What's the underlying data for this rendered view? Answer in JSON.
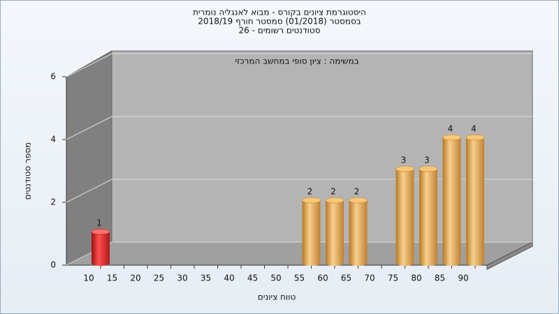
{
  "chart_data": {
    "type": "bar3d",
    "title": [
      "היסטוגרמת ציונים בקורס - מבוא לאנגליה נומרית",
      "בסמסטר (01/2018)  סמסטר חורף 2018/19",
      "סטודנטים רשומים - 26"
    ],
    "subtitle": "במשימה : ציון סופי במחשב המרכזי",
    "x_label": "טווח ציונים",
    "y_label": "מספר סטודנטים",
    "categories": [
      "10",
      "15",
      "20",
      "25",
      "30",
      "35",
      "40",
      "45",
      "50",
      "55",
      "60",
      "65",
      "70",
      "75",
      "80",
      "85",
      "90"
    ],
    "values": [
      1,
      0,
      0,
      0,
      0,
      0,
      0,
      0,
      0,
      2,
      2,
      2,
      0,
      3,
      3,
      4,
      4
    ],
    "colors": {
      "fail": "#d42020",
      "pass": "#e0a040"
    },
    "pass_from": "55",
    "ylim": [
      0,
      6
    ],
    "yticks": [
      0,
      2,
      4,
      6
    ],
    "grid": true
  }
}
